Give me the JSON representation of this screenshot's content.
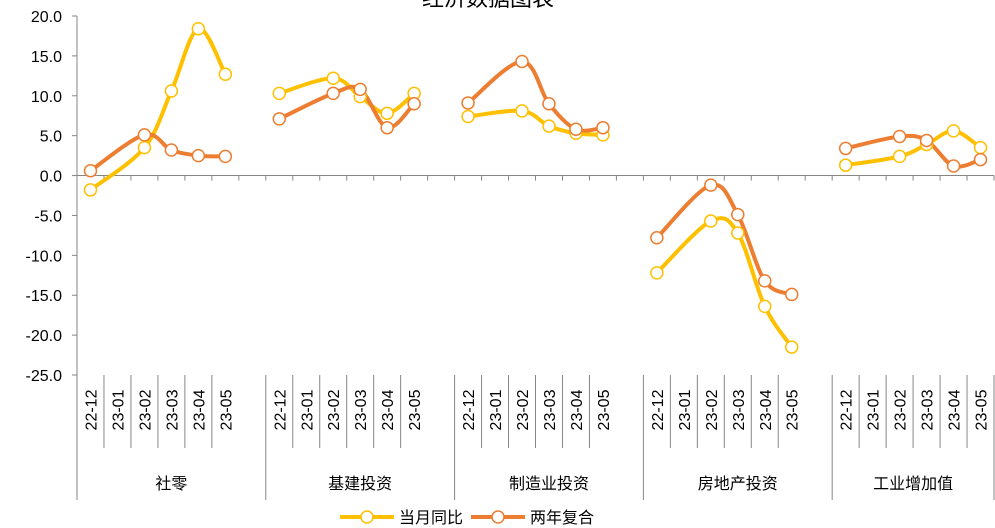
{
  "chart_data": {
    "type": "line",
    "title": "经济数据图表",
    "groups": [
      {
        "name": "社零",
        "categories": [
          "22-12",
          "23-01",
          "23-02",
          "23-03",
          "23-04",
          "23-05"
        ]
      },
      {
        "name": "基建投资",
        "categories": [
          "22-12",
          "23-01",
          "23-02",
          "23-03",
          "23-04",
          "23-05"
        ]
      },
      {
        "name": "制造业投资",
        "categories": [
          "22-12",
          "23-01",
          "23-02",
          "23-03",
          "23-04",
          "23-05"
        ]
      },
      {
        "name": "房地产投资",
        "categories": [
          "22-12",
          "23-01",
          "23-02",
          "23-03",
          "23-04",
          "23-05"
        ]
      },
      {
        "name": "工业增加值",
        "categories": [
          "22-12",
          "23-01",
          "23-02",
          "23-03",
          "23-04",
          "23-05"
        ]
      }
    ],
    "series": [
      {
        "name": "当月同比",
        "color": "#FFC000",
        "values": [
          [
            -1.8,
            null,
            3.5,
            10.6,
            18.4,
            12.7
          ],
          [
            10.3,
            null,
            12.2,
            9.9,
            7.8,
            10.3
          ],
          [
            7.4,
            null,
            8.1,
            6.2,
            5.3,
            5.1
          ],
          [
            -12.2,
            null,
            -5.7,
            -7.2,
            -16.4,
            -21.5
          ],
          [
            1.3,
            null,
            2.4,
            3.9,
            5.6,
            3.5
          ]
        ]
      },
      {
        "name": "两年复合",
        "color": "#ED7D31",
        "values": [
          [
            0.6,
            null,
            5.1,
            3.2,
            2.5,
            2.4
          ],
          [
            7.1,
            null,
            10.3,
            10.8,
            6.0,
            9.0
          ],
          [
            9.1,
            null,
            14.3,
            9.0,
            5.8,
            6.0
          ],
          [
            -7.8,
            null,
            -1.2,
            -4.9,
            -13.2,
            -14.9
          ],
          [
            3.4,
            null,
            4.9,
            4.4,
            1.2,
            2.0
          ]
        ]
      }
    ],
    "connect_gaps": true,
    "smooth": true,
    "ylim": [
      -25,
      20
    ],
    "yticks": [
      {
        "value": -25,
        "label": "-25.0"
      },
      {
        "value": -20,
        "label": "-20.0"
      },
      {
        "value": -15,
        "label": "-15.0"
      },
      {
        "value": -10,
        "label": "-10.0"
      },
      {
        "value": -5,
        "label": "-5.0"
      },
      {
        "value": 0,
        "label": "0.0"
      },
      {
        "value": 5,
        "label": "5.0"
      },
      {
        "value": 10,
        "label": "10.0"
      },
      {
        "value": 15,
        "label": "15.0"
      },
      {
        "value": 20,
        "label": "20.0"
      }
    ],
    "legend": "bottom"
  }
}
